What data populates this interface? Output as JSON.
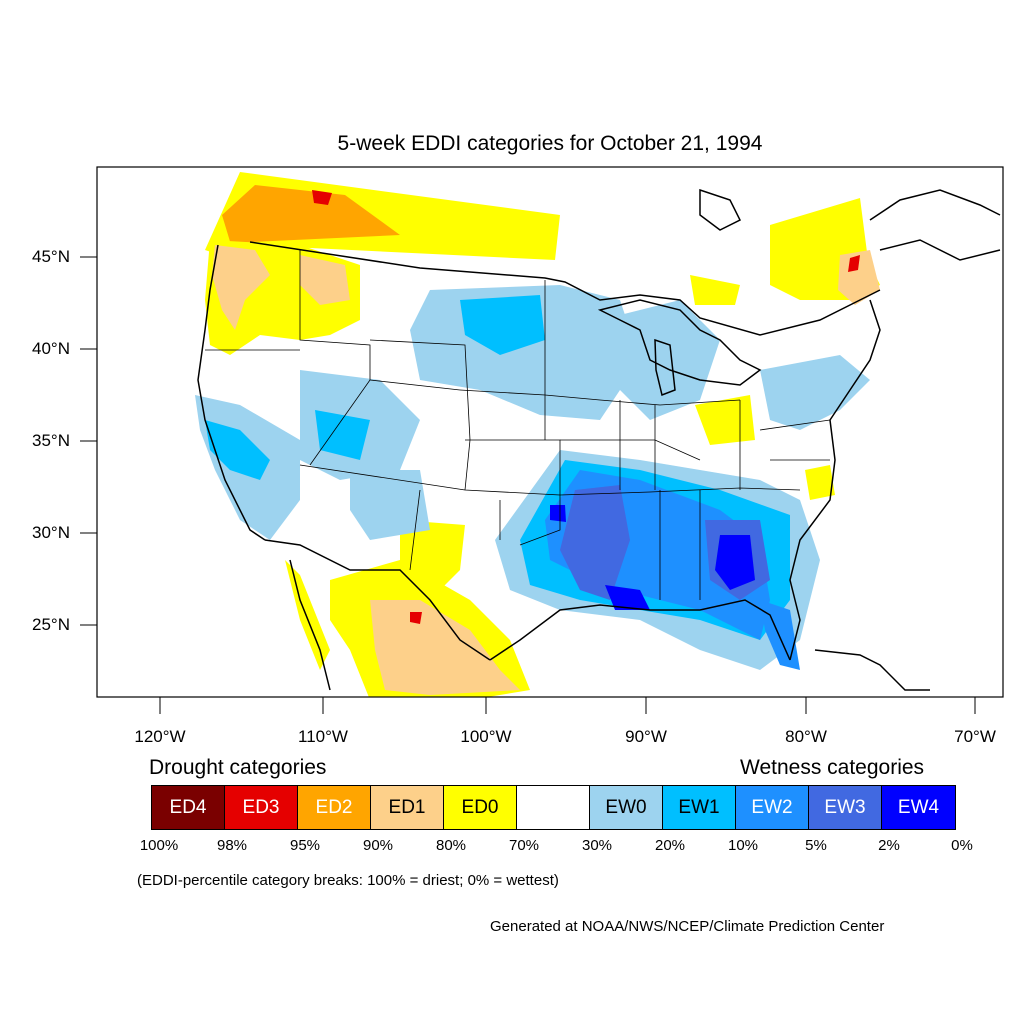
{
  "title": "5-week EDDI categories for October 21, 1994",
  "colors": {
    "ED4": "#7a0000",
    "ED3": "#e50000",
    "ED2": "#ffa500",
    "ED1": "#fdd08a",
    "ED0": "#ffff00",
    "none": "#ffffff",
    "EW0": "#9dd3ef",
    "EW1": "#00bfff",
    "EW2": "#1e90ff",
    "EW3": "#4169e1",
    "EW4": "#0000ff"
  },
  "lat_labels": [
    "45°N",
    "40°N",
    "35°N",
    "30°N",
    "25°N"
  ],
  "lon_labels": [
    "120°W",
    "110°W",
    "100°W",
    "90°W",
    "80°W",
    "70°W"
  ],
  "legend": {
    "drought_heading": "Drought categories",
    "wetness_heading": "Wetness categories",
    "categories": [
      {
        "label": "ED4",
        "color": "#7a0000",
        "text_color": "#ffffff"
      },
      {
        "label": "ED3",
        "color": "#e50000",
        "text_color": "#ffffff"
      },
      {
        "label": "ED2",
        "color": "#ffa500",
        "text_color": "#ffffff"
      },
      {
        "label": "ED1",
        "color": "#fdd08a",
        "text_color": "#000000"
      },
      {
        "label": "ED0",
        "color": "#ffff00",
        "text_color": "#000000"
      },
      {
        "label": "",
        "color": "#ffffff",
        "text_color": "#000000"
      },
      {
        "label": "EW0",
        "color": "#9dd3ef",
        "text_color": "#000000"
      },
      {
        "label": "EW1",
        "color": "#00bfff",
        "text_color": "#000000"
      },
      {
        "label": "EW2",
        "color": "#1e90ff",
        "text_color": "#ffffff"
      },
      {
        "label": "EW3",
        "color": "#4169e1",
        "text_color": "#ffffff"
      },
      {
        "label": "EW4",
        "color": "#0000ff",
        "text_color": "#ffffff"
      }
    ],
    "breaks": [
      "100%",
      "98%",
      "95%",
      "90%",
      "80%",
      "70%",
      "30%",
      "20%",
      "10%",
      "5%",
      "2%",
      "0%"
    ]
  },
  "note": "(EDDI-percentile category breaks: 100% = driest; 0% = wettest)",
  "credit": "Generated at NOAA/NWS/NCEP/Climate Prediction Center"
}
